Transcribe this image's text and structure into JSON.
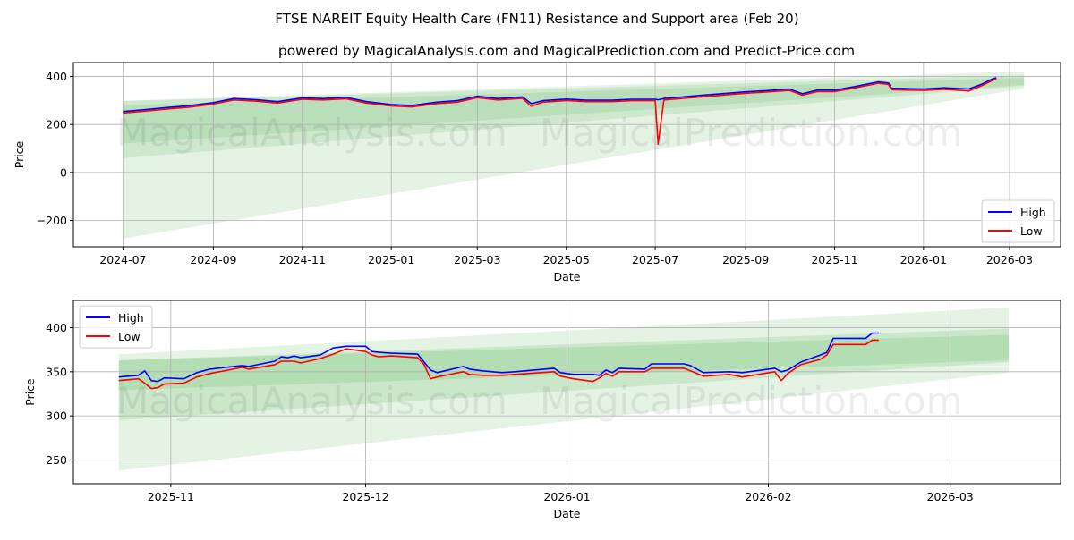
{
  "title": "FTSE NAREIT Equity Health Care (FN11) Resistance and Support area (Feb 20)",
  "subtitle": "powered by MagicalAnalysis.com and MagicalPrediction.com and Predict-Price.com",
  "watermarks": [
    "MagicalAnalysis.com",
    "MagicalPrediction.com"
  ],
  "colors": {
    "high": "#0000ff",
    "low": "#ff0000",
    "band": "#2ca02c",
    "grid": "#b0b0b0"
  },
  "chart_data": [
    {
      "type": "line",
      "xlabel": "Date",
      "ylabel": "Price",
      "xlim": [
        "2024-05-28",
        "2026-04-05"
      ],
      "ylim": [
        -310,
        458
      ],
      "yticks": [
        -200,
        0,
        200,
        400
      ],
      "xticks": [
        "2024-07",
        "2024-09",
        "2024-11",
        "2025-01",
        "2025-03",
        "2025-05",
        "2025-07",
        "2025-09",
        "2025-11",
        "2026-01",
        "2026-03"
      ],
      "legend": {
        "position": "lower-right",
        "entries": [
          "High",
          "Low"
        ]
      },
      "grid": true,
      "bands": [
        {
          "start": "2024-07-01",
          "end": "2026-03-11",
          "start_range": [
            -276,
            298
          ],
          "end_range": [
            350,
            421
          ],
          "opacity": 0.12
        },
        {
          "start": "2024-07-01",
          "end": "2026-03-11",
          "start_range": [
            60,
            298
          ],
          "end_range": [
            360,
            405
          ],
          "opacity": 0.12
        },
        {
          "start": "2024-07-01",
          "end": "2026-03-11",
          "start_range": [
            120,
            280
          ],
          "end_range": [
            365,
            395
          ],
          "opacity": 0.12
        }
      ],
      "series": [
        {
          "name": "High",
          "x": [
            "2024-07-01",
            "2024-07-15",
            "2024-08-01",
            "2024-08-15",
            "2024-09-01",
            "2024-09-15",
            "2024-10-01",
            "2024-10-15",
            "2024-11-01",
            "2024-11-15",
            "2024-12-01",
            "2024-12-15",
            "2025-01-01",
            "2025-01-15",
            "2025-02-01",
            "2025-02-15",
            "2025-03-01",
            "2025-03-15",
            "2025-04-01",
            "2025-04-07",
            "2025-04-15",
            "2025-05-01",
            "2025-05-15",
            "2025-06-01",
            "2025-06-15",
            "2025-07-01",
            "2025-07-03",
            "2025-07-07",
            "2025-08-01",
            "2025-09-01",
            "2025-09-15",
            "2025-10-01",
            "2025-10-10",
            "2025-10-20",
            "2025-11-01",
            "2025-11-15",
            "2025-12-01",
            "2025-12-08",
            "2025-12-10",
            "2026-01-01",
            "2026-01-15",
            "2026-02-01",
            "2026-02-10",
            "2026-02-17",
            "2026-02-20"
          ],
          "values": [
            254,
            261,
            271,
            278,
            291,
            308,
            303,
            295,
            311,
            308,
            313,
            295,
            283,
            279,
            293,
            299,
            318,
            308,
            315,
            287,
            299,
            306,
            301,
            301,
            305,
            305,
            303,
            308,
            321,
            336,
            341,
            348,
            328,
            343,
            343,
            358,
            378,
            373,
            351,
            348,
            353,
            348,
            368,
            389,
            395
          ]
        },
        {
          "name": "Low",
          "x": [
            "2024-07-01",
            "2024-07-15",
            "2024-08-01",
            "2024-08-15",
            "2024-09-01",
            "2024-09-15",
            "2024-10-01",
            "2024-10-15",
            "2024-11-01",
            "2024-11-15",
            "2024-12-01",
            "2024-12-15",
            "2025-01-01",
            "2025-01-15",
            "2025-02-01",
            "2025-02-15",
            "2025-03-01",
            "2025-03-15",
            "2025-04-01",
            "2025-04-07",
            "2025-04-15",
            "2025-05-01",
            "2025-05-15",
            "2025-06-01",
            "2025-06-15",
            "2025-07-01",
            "2025-07-03",
            "2025-07-07",
            "2025-08-01",
            "2025-09-01",
            "2025-09-15",
            "2025-10-01",
            "2025-10-10",
            "2025-10-20",
            "2025-11-01",
            "2025-11-15",
            "2025-12-01",
            "2025-12-08",
            "2025-12-10",
            "2026-01-01",
            "2026-01-15",
            "2026-02-01",
            "2026-02-10",
            "2026-02-17",
            "2026-02-20"
          ],
          "values": [
            248,
            255,
            265,
            272,
            285,
            302,
            297,
            289,
            305,
            302,
            307,
            289,
            277,
            273,
            287,
            293,
            312,
            302,
            309,
            276,
            293,
            300,
            295,
            295,
            299,
            299,
            118,
            302,
            315,
            330,
            335,
            342,
            322,
            337,
            337,
            352,
            372,
            367,
            345,
            342,
            347,
            340,
            362,
            383,
            389
          ]
        }
      ]
    },
    {
      "type": "line",
      "xlabel": "Date",
      "ylabel": "Price",
      "xlim": [
        "2025-10-17",
        "2026-03-18"
      ],
      "ylim": [
        223,
        431
      ],
      "yticks": [
        250,
        300,
        350,
        400
      ],
      "xticks": [
        "2025-11",
        "2025-12",
        "2026-01",
        "2026-02",
        "2026-03"
      ],
      "legend": {
        "position": "upper-left",
        "entries": [
          "High",
          "Low"
        ]
      },
      "grid": true,
      "bands": [
        {
          "start": "2025-10-24",
          "end": "2026-03-10",
          "start_range": [
            238,
            370
          ],
          "end_range": [
            349,
            423
          ],
          "opacity": 0.12
        },
        {
          "start": "2025-10-24",
          "end": "2026-03-10",
          "start_range": [
            295,
            363
          ],
          "end_range": [
            361,
            399
          ],
          "opacity": 0.14
        },
        {
          "start": "2025-10-24",
          "end": "2026-03-10",
          "start_range": [
            329,
            363
          ],
          "end_range": [
            363,
            392
          ],
          "opacity": 0.14
        }
      ],
      "x": [
        "2025-10-24",
        "2025-10-27",
        "2025-10-28",
        "2025-10-29",
        "2025-10-30",
        "2025-10-31",
        "2025-11-03",
        "2025-11-05",
        "2025-11-07",
        "2025-11-12",
        "2025-11-13",
        "2025-11-17",
        "2025-11-18",
        "2025-11-19",
        "2025-11-20",
        "2025-11-21",
        "2025-11-24",
        "2025-11-26",
        "2025-11-28",
        "2025-12-01",
        "2025-12-02",
        "2025-12-03",
        "2025-12-05",
        "2025-12-09",
        "2025-12-10",
        "2025-12-11",
        "2025-12-12",
        "2025-12-16",
        "2025-12-17",
        "2025-12-19",
        "2025-12-22",
        "2025-12-24",
        "2025-12-30",
        "2025-12-31",
        "2026-01-02",
        "2026-01-05",
        "2026-01-06",
        "2026-01-07",
        "2026-01-08",
        "2026-01-09",
        "2026-01-13",
        "2026-01-14",
        "2026-01-19",
        "2026-01-20",
        "2026-01-22",
        "2026-01-26",
        "2026-01-28",
        "2026-02-02",
        "2026-02-03",
        "2026-02-04",
        "2026-02-06",
        "2026-02-09",
        "2026-02-10",
        "2026-02-11",
        "2026-02-16",
        "2026-02-17",
        "2026-02-18"
      ],
      "series": [
        {
          "name": "High",
          "values": [
            344,
            346,
            351,
            340,
            339,
            343,
            342,
            349,
            353,
            357,
            356,
            362,
            367,
            366,
            368,
            366,
            369,
            377,
            379,
            379,
            373,
            372,
            371,
            370,
            361,
            352,
            349,
            356,
            353,
            351,
            349,
            350,
            354,
            349,
            347,
            347,
            346,
            352,
            349,
            354,
            353,
            359,
            359,
            357,
            349,
            350,
            349,
            354,
            350,
            352,
            361,
            369,
            372,
            388,
            388,
            394,
            394
          ]
        },
        {
          "name": "Low",
          "values": [
            340,
            342,
            337,
            331,
            332,
            336,
            337,
            344,
            348,
            355,
            353,
            358,
            362,
            362,
            362,
            360,
            365,
            370,
            376,
            373,
            369,
            367,
            368,
            366,
            358,
            342,
            344,
            350,
            347,
            346,
            346,
            347,
            350,
            345,
            342,
            339,
            343,
            348,
            345,
            350,
            350,
            354,
            354,
            351,
            345,
            347,
            344,
            350,
            340,
            348,
            358,
            364,
            369,
            381,
            381,
            386,
            386
          ]
        }
      ]
    }
  ]
}
